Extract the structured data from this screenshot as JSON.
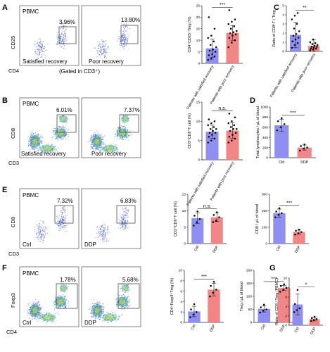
{
  "panels": {
    "A": {
      "letter": "A",
      "flow": [
        {
          "sample": "PBMC",
          "group": "Satisfied recovery",
          "gate_pct": "3.96%"
        },
        {
          "sample": "",
          "group": "Poor recovery",
          "gate_pct": "13.80%"
        }
      ],
      "x_axis": "CD4",
      "y_axis": "CD25",
      "note": "(Gated in CD3⁺)"
    },
    "B": {
      "letter": "B",
      "flow": [
        {
          "sample": "PBMC",
          "group": "Satisfied recovery",
          "gate_pct": "6.01%"
        },
        {
          "sample": "",
          "group": "Poor recovery",
          "gate_pct": "7.37%"
        }
      ],
      "x_axis": "CD3",
      "y_axis": "CD8"
    },
    "E": {
      "letter": "E",
      "flow": [
        {
          "sample": "PBMC",
          "group": "Ctrl",
          "gate_pct": "7.32%"
        },
        {
          "sample": "",
          "group": "DDP",
          "gate_pct": "6.83%"
        }
      ],
      "x_axis": "CD3",
      "y_axis": "CD8"
    },
    "F": {
      "letter": "F",
      "flow": [
        {
          "sample": "PBMC",
          "group": "Ctrl",
          "gate_pct": "1.78%"
        },
        {
          "sample": "",
          "group": "DDP",
          "gate_pct": "5.68%"
        }
      ],
      "x_axis": "CD4",
      "y_axis": "Foxp3"
    },
    "C": {
      "letter": "C"
    },
    "D": {
      "letter": "D"
    },
    "G": {
      "letter": "G"
    }
  },
  "colors": {
    "blue": "#8f8ff2",
    "red": "#f28585",
    "flow_dot": "#4b5fd6"
  },
  "chart_data": [
    {
      "id": "A-bar",
      "type": "bar",
      "categories": [
        "Patients with satisfied recovery",
        "Patients with poor recovery"
      ],
      "values": [
        6.5,
        13.2
      ],
      "errors": [
        4.0,
        3.2
      ],
      "ylabel": "CD4⁺CD25⁺Treg (%)",
      "ylim": [
        0,
        25
      ],
      "yticks": [
        "0",
        "5",
        "10",
        "15",
        "20",
        "25"
      ],
      "sig": "***",
      "points": [
        [
          1.5,
          2,
          3,
          3.5,
          4,
          5,
          5.5,
          6,
          7,
          8,
          9.5,
          11,
          12,
          15,
          20
        ],
        [
          7,
          9,
          10,
          11,
          12,
          12.5,
          13,
          13.5,
          14,
          15,
          16,
          17,
          18,
          19,
          23
        ]
      ]
    },
    {
      "id": "C-bar",
      "type": "bar",
      "categories": [
        "Patients with satisfied recovery",
        "Patients with poor recovery"
      ],
      "values": [
        1.8,
        0.6
      ],
      "errors": [
        1.4,
        0.7
      ],
      "ylabel": "Ratio of CD8⁺T / Treg",
      "ylim": [
        0,
        5
      ],
      "yticks": [
        "0",
        "1",
        "2",
        "3",
        "4",
        "5"
      ],
      "sig": "**",
      "points": [
        [
          0.4,
          0.7,
          0.9,
          1.1,
          1.3,
          1.5,
          1.7,
          1.9,
          2.2,
          2.5,
          3.0,
          3.5,
          3.9,
          4.2
        ],
        [
          0.1,
          0.2,
          0.3,
          0.3,
          0.4,
          0.5,
          0.5,
          0.6,
          0.7,
          0.8,
          0.9,
          1.0,
          1.3
        ]
      ]
    },
    {
      "id": "B-bar",
      "type": "bar",
      "categories": [
        "Patients with satisfied recovery",
        "Patients with poor recovery"
      ],
      "values": [
        7.3,
        7.6
      ],
      "errors": [
        1.7,
        2.0
      ],
      "ylabel": "CD3⁺CD8⁺T cell (%)",
      "ylim": [
        0,
        15
      ],
      "yticks": [
        "0",
        "5",
        "10",
        "15"
      ],
      "sig": "n.s.",
      "points": [
        [
          4.5,
          5,
          5.5,
          6,
          6.5,
          7,
          7,
          7.5,
          8,
          8,
          8.5,
          9,
          9.5,
          10,
          10.5
        ],
        [
          4.5,
          5,
          5.5,
          6,
          6.5,
          7,
          7.5,
          8,
          8,
          8.5,
          9,
          9.5,
          10,
          11,
          12
        ]
      ]
    },
    {
      "id": "D-bar",
      "type": "bar",
      "categories": [
        "Ctrl",
        "DDP"
      ],
      "values": [
        640,
        200
      ],
      "errors": [
        120,
        50
      ],
      "ylabel": "Total lymphocytes / μL of blood",
      "ylim": [
        0,
        1000
      ],
      "yticks": [
        "0",
        "200",
        "400",
        "600",
        "800",
        "1000"
      ],
      "sig": "***",
      "points": [
        [
          540,
          600,
          660,
          720,
          780
        ],
        [
          140,
          180,
          200,
          230,
          260
        ]
      ]
    },
    {
      "id": "E-bar1",
      "type": "bar",
      "categories": [
        "Ctrl",
        "DDP"
      ],
      "values": [
        7.7,
        8.0
      ],
      "errors": [
        1.6,
        1.3
      ],
      "ylabel": "CD3⁺CD8⁺T cell (%)",
      "ylim": [
        0,
        15
      ],
      "yticks": [
        "0",
        "5",
        "10",
        "15"
      ],
      "sig": "n.s.",
      "points": [
        [
          5.5,
          6.5,
          7.5,
          8.5,
          9.8
        ],
        [
          6.5,
          7,
          8,
          8.7,
          9.5
        ]
      ]
    },
    {
      "id": "E-bar2",
      "type": "bar",
      "categories": [
        "Ctrl",
        "DDP"
      ],
      "values": [
        185,
        70
      ],
      "errors": [
        25,
        12
      ],
      "ylabel": "CD8 / μL of blood",
      "ylim": [
        0,
        300
      ],
      "yticks": [
        "0",
        "100",
        "200",
        "300"
      ],
      "sig": "***",
      "points": [
        [
          160,
          175,
          185,
          195,
          215
        ],
        [
          55,
          62,
          70,
          78,
          85
        ]
      ]
    },
    {
      "id": "F-bar1",
      "type": "bar",
      "categories": [
        "Ctrl",
        "DDP"
      ],
      "values": [
        2.1,
        6.3
      ],
      "errors": [
        1.0,
        1.2
      ],
      "ylabel": "CD4⁺Foxp3⁺Treg (%)",
      "ylim": [
        0,
        10
      ],
      "yticks": [
        "0",
        "2",
        "4",
        "6",
        "8",
        "10"
      ],
      "sig": "***",
      "points": [
        [
          1.0,
          1.5,
          2.0,
          2.5,
          3.5
        ],
        [
          5.0,
          5.7,
          6.3,
          7.0,
          7.8
        ]
      ]
    },
    {
      "id": "F-bar2",
      "type": "bar",
      "categories": [
        "Ctrl",
        "DDP"
      ],
      "values": [
        52,
        132
      ],
      "errors": [
        12,
        10
      ],
      "ylabel": "Treg / μL of blood",
      "ylim": [
        0,
        200
      ],
      "yticks": [
        "0",
        "50",
        "100",
        "150",
        "200"
      ],
      "sig": "***",
      "points": [
        [
          38,
          45,
          50,
          58,
          68
        ],
        [
          118,
          125,
          132,
          140,
          146
        ]
      ]
    },
    {
      "id": "G-bar",
      "type": "bar",
      "categories": [
        "Ctrl",
        "DDP"
      ],
      "values": [
        4.4,
        1.3
      ],
      "errors": [
        2.2,
        0.4
      ],
      "ylabel": "Ratio of CD8 / Treg (PBMC)",
      "ylim": [
        0,
        10
      ],
      "yticks": [
        "0",
        "2",
        "4",
        "6",
        "8",
        "10"
      ],
      "sig": "*",
      "points": [
        [
          2.8,
          3.2,
          3.6,
          4.5,
          7.5
        ],
        [
          0.9,
          1.1,
          1.3,
          1.5,
          1.8
        ]
      ]
    }
  ]
}
